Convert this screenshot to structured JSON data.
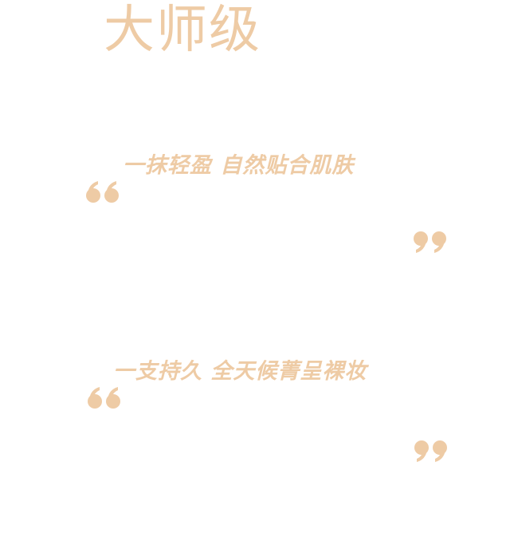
{
  "theme": {
    "accent": "#eecba5"
  },
  "headline": "大师级",
  "quotes": [
    {
      "text": "一抹轻盈 自然贴合肌肤",
      "open_icon": "open-quote-icon",
      "close_icon": "close-quote-icon"
    },
    {
      "text": "一支持久 全天候菁呈裸妆",
      "open_icon": "open-quote-icon",
      "close_icon": "close-quote-icon"
    }
  ]
}
